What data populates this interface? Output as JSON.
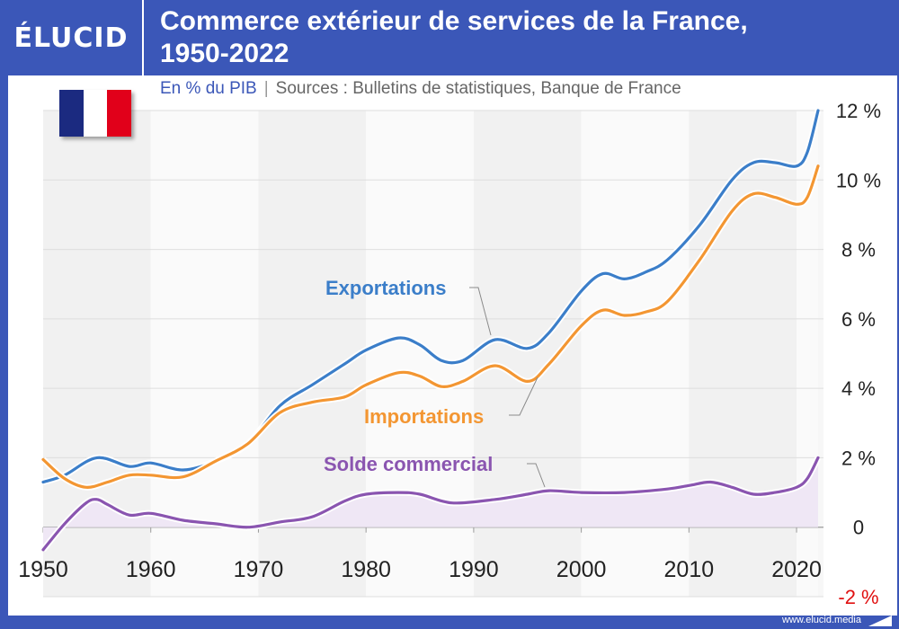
{
  "brand": {
    "logo_text": "ÉLUCID",
    "footer_url": "www.elucid.media"
  },
  "header": {
    "title_line1": "Commerce extérieur de services de la France,",
    "title_line2": "1950-2022",
    "unit_label": "En % du PIB",
    "separator": "|",
    "sources": "Sources : Bulletins de statistiques, Banque de France"
  },
  "flag": {
    "colors": [
      "#1b2a80",
      "#ffffff",
      "#e1001a"
    ],
    "icon": "france-flag-icon"
  },
  "colors": {
    "exports": "#3b7ec9",
    "imports": "#f39632",
    "balance": "#8a55b0",
    "balance_fill": "#efe7f5",
    "negative_tick": "#e01010",
    "frame": "#3b57b8"
  },
  "chart_data": {
    "type": "line",
    "title": "Commerce extérieur de services de la France, 1950-2022",
    "xlabel": "",
    "ylabel": "En % du PIB",
    "xlim": [
      1950,
      2022
    ],
    "ylim": [
      -2,
      12
    ],
    "x_ticks": [
      "1950",
      "1960",
      "1970",
      "1980",
      "1990",
      "2000",
      "2010",
      "2020"
    ],
    "y_ticks": [
      "12 %",
      "10 %",
      "8 %",
      "6 %",
      "4 %",
      "2 %",
      "0",
      "-2 %"
    ],
    "y_tick_values": [
      12,
      10,
      8,
      6,
      4,
      2,
      0,
      -2
    ],
    "grid": "horizontal",
    "series": [
      {
        "name": "Exportations",
        "x": [
          1950,
          1952,
          1955,
          1958,
          1960,
          1963,
          1966,
          1969,
          1972,
          1975,
          1978,
          1980,
          1983,
          1985,
          1987,
          1989,
          1992,
          1995,
          1997,
          2000,
          2002,
          2004,
          2006,
          2008,
          2011,
          2014,
          2016,
          2018,
          2020,
          2021,
          2022
        ],
        "y": [
          1.3,
          1.5,
          2.0,
          1.75,
          1.85,
          1.65,
          1.9,
          2.4,
          3.5,
          4.1,
          4.7,
          5.1,
          5.45,
          5.25,
          4.8,
          4.8,
          5.4,
          5.15,
          5.6,
          6.8,
          7.3,
          7.15,
          7.35,
          7.7,
          8.7,
          10.0,
          10.5,
          10.5,
          10.4,
          10.8,
          12.0
        ]
      },
      {
        "name": "Importations",
        "x": [
          1950,
          1952,
          1954,
          1956,
          1958,
          1960,
          1963,
          1966,
          1969,
          1972,
          1975,
          1978,
          1980,
          1983,
          1985,
          1987,
          1989,
          1992,
          1995,
          1997,
          2000,
          2002,
          2004,
          2006,
          2008,
          2011,
          2014,
          2016,
          2018,
          2020,
          2021,
          2022
        ],
        "y": [
          1.95,
          1.4,
          1.15,
          1.3,
          1.5,
          1.5,
          1.45,
          1.9,
          2.4,
          3.3,
          3.6,
          3.75,
          4.1,
          4.45,
          4.35,
          4.05,
          4.2,
          4.65,
          4.2,
          4.7,
          5.8,
          6.25,
          6.1,
          6.2,
          6.5,
          7.7,
          9.1,
          9.6,
          9.5,
          9.3,
          9.5,
          10.4
        ]
      },
      {
        "name": "Solde commercial",
        "x": [
          1950,
          1952,
          1954,
          1955,
          1956,
          1958,
          1960,
          1963,
          1966,
          1969,
          1972,
          1975,
          1978,
          1980,
          1983,
          1985,
          1988,
          1992,
          1995,
          1997,
          2000,
          2004,
          2008,
          2010,
          2012,
          2014,
          2016,
          2018,
          2020,
          2021,
          2022
        ],
        "y": [
          -0.65,
          0.1,
          0.7,
          0.8,
          0.65,
          0.35,
          0.4,
          0.2,
          0.1,
          0.0,
          0.15,
          0.3,
          0.75,
          0.95,
          1.0,
          0.95,
          0.7,
          0.8,
          0.95,
          1.05,
          1.0,
          1.0,
          1.1,
          1.2,
          1.3,
          1.15,
          0.95,
          1.0,
          1.15,
          1.4,
          2.0
        ]
      }
    ],
    "annotations": [
      "Exportations",
      "Importations",
      "Solde commercial"
    ]
  }
}
